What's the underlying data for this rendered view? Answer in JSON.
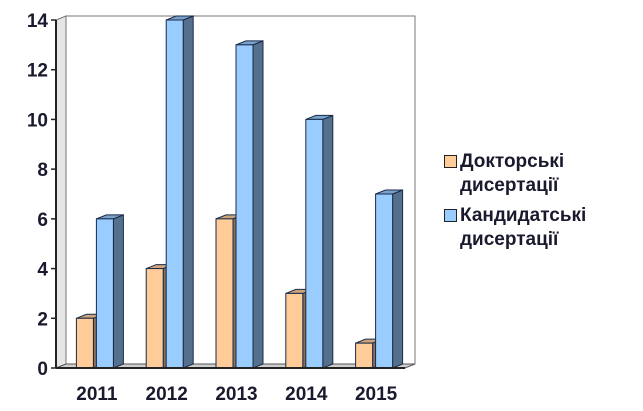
{
  "chart_data": {
    "type": "bar",
    "categories": [
      "2011",
      "2012",
      "2013",
      "2014",
      "2015"
    ],
    "series": [
      {
        "name": "Докторські дисертації",
        "values": [
          2,
          4,
          6,
          3,
          1
        ],
        "color": "#FFCC99"
      },
      {
        "name": "Кандидатські дисертації",
        "values": [
          6,
          14,
          13,
          10,
          7
        ],
        "color": "#99CCFF"
      }
    ],
    "yticks": [
      "0",
      "2",
      "4",
      "6",
      "8",
      "10",
      "12",
      "14"
    ],
    "ylim": [
      0,
      14
    ],
    "legend_position": "right",
    "grid": false
  }
}
